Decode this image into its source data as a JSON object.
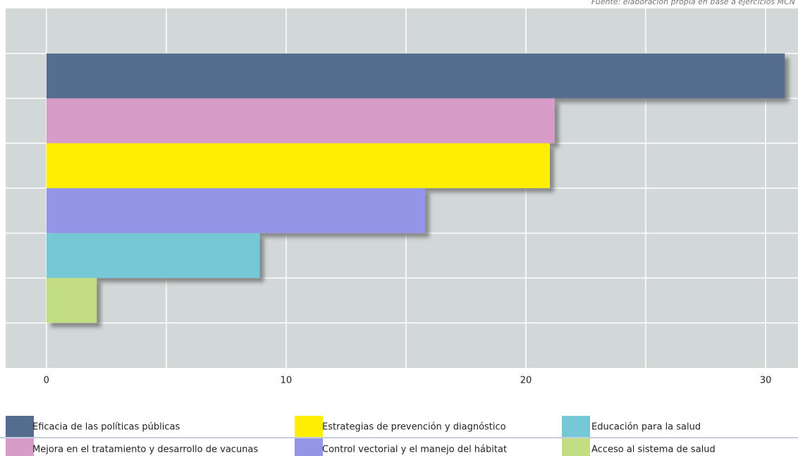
{
  "chart_data": {
    "type": "barh",
    "source": "Fuente: elaboración propia en base a ejercicios MCN",
    "categories": [
      "Eficacia de las políticas públicas",
      "Mejora en el tratamiento y desarrollo de vacunas",
      "Estrategias de prevención y diagnóstico",
      "Control vectorial y el manejo del hábitat",
      "Educación para la salud",
      "Acceso al sistema de salud"
    ],
    "values": [
      30.8,
      21.2,
      21.0,
      15.8,
      8.9,
      2.1
    ],
    "colors": [
      "#546d8e",
      "#d79dc8",
      "#ffee00",
      "#9595e8",
      "#76c8d6",
      "#c3de82"
    ],
    "xlim": [
      -1.7,
      31.35
    ],
    "xticks": [
      0,
      10,
      20,
      30
    ],
    "xminorticks": [
      5,
      15,
      25
    ],
    "grid": true
  }
}
